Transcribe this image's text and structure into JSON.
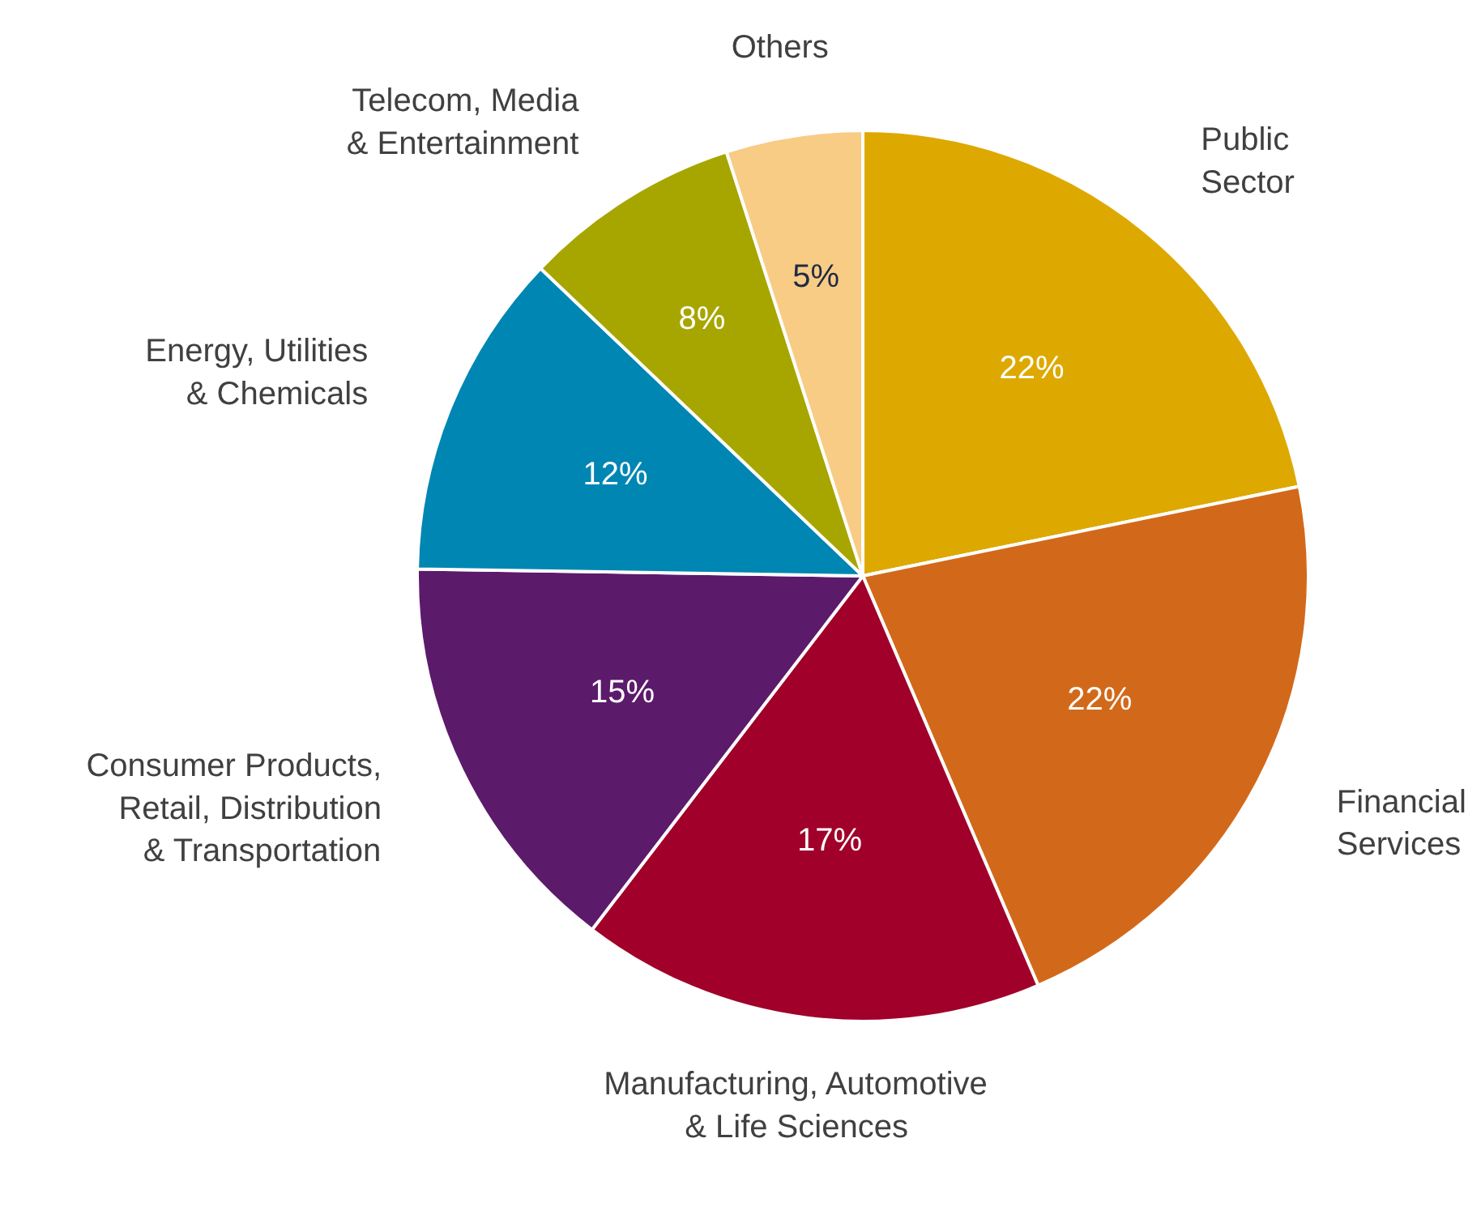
{
  "chart_data": {
    "type": "pie",
    "categories": [
      "Public\nSector",
      "Financial\nServices",
      "Manufacturing, Automotive\n& Life Sciences",
      "Consumer Products,\nRetail, Distribution\n& Transportation",
      "Energy, Utilities\n& Chemicals",
      "Telecom, Media\n& Entertainment",
      "Others"
    ],
    "values": [
      22,
      22,
      17,
      15,
      12,
      8,
      5
    ],
    "value_labels": [
      "22%",
      "22%",
      "17%",
      "15%",
      "12%",
      "8%",
      "5%"
    ],
    "colors": [
      "#dda900",
      "#d2691a",
      "#a0002a",
      "#5c1a6b",
      "#0086b3",
      "#a7a600",
      "#f8cc85"
    ]
  }
}
